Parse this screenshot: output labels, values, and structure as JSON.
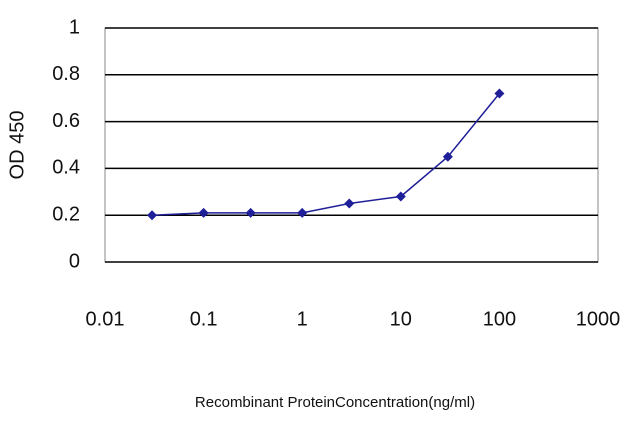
{
  "chart_data": {
    "type": "line",
    "x_label": "Recombinant ProteinConcentration(ng/ml)",
    "y_label": "OD 450",
    "x": [
      0.03,
      0.1,
      0.3,
      1,
      3,
      10,
      30,
      100
    ],
    "series": [
      {
        "color": "#1f1f99",
        "values": [
          0.2,
          0.21,
          0.21,
          0.21,
          0.25,
          0.28,
          0.45,
          0.72
        ]
      }
    ],
    "xlim": [
      0.01,
      1000
    ],
    "xticks": [
      0.01,
      0.1,
      1,
      10,
      100,
      1000
    ],
    "xlog": true,
    "ylim": [
      0,
      1
    ],
    "yticks": [
      0,
      0.2,
      0.4,
      0.6,
      0.8,
      1
    ],
    "grid": true
  }
}
